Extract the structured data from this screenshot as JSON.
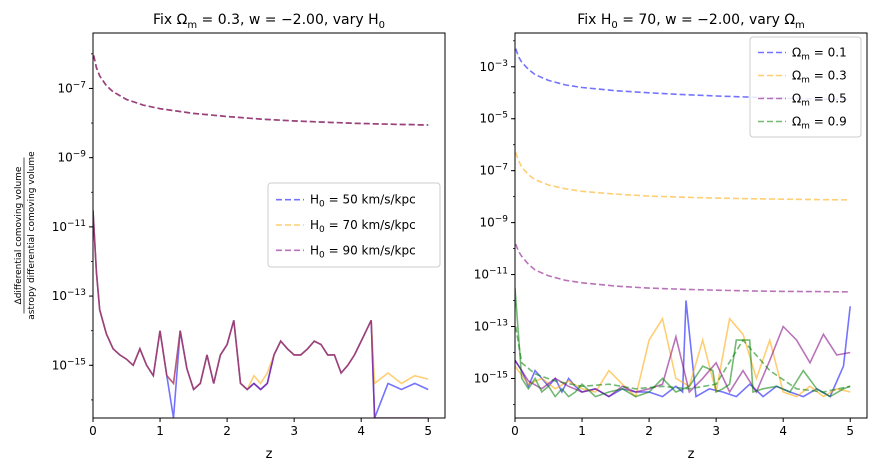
{
  "chart_data": [
    {
      "type": "line",
      "title": "Fix Ω_m = 0.3, w = −2.00, vary H_0",
      "xlabel": "z",
      "ylabel_numerator": "Δdifferential comoving volume",
      "ylabel_denominator": "astropy differential comoving volume",
      "xlim": [
        0,
        5.25
      ],
      "ylim": [
        3e-17,
        4e-06
      ],
      "yscale": "log",
      "x_ticks": [
        "0",
        "1",
        "2",
        "3",
        "4",
        "5"
      ],
      "y_ticks": [
        "10^-7",
        "10^-9",
        "10^-11",
        "10^-13",
        "10^-15"
      ],
      "legend": {
        "location": "center-right"
      },
      "series": [
        {
          "name": "H_0 = 50 km/s/kpc",
          "color": "#0000ff",
          "style": "dashed",
          "x": [
            0.01,
            0.05,
            0.1,
            0.2,
            0.3,
            0.5,
            0.75,
            1.0,
            1.5,
            2.0,
            2.5,
            3.0,
            3.5,
            4.0,
            4.5,
            5.0
          ],
          "y": [
            9e-07,
            4e-07,
            2.3e-07,
            1.2e-07,
            8e-08,
            4.8e-08,
            3.3e-08,
            2.6e-08,
            1.9e-08,
            1.55e-08,
            1.3e-08,
            1.15e-08,
            1.05e-08,
            9.7e-09,
            9.2e-09,
            8.8e-09
          ]
        },
        {
          "name": "H_0 = 70 km/s/kpc",
          "color": "#ffa500",
          "style": "dashed",
          "x": [
            0.01,
            0.05,
            0.1,
            0.2,
            0.3,
            0.5,
            0.75,
            1.0,
            1.5,
            2.0,
            2.5,
            3.0,
            3.5,
            4.0,
            4.5,
            5.0
          ],
          "y": [
            9e-07,
            4e-07,
            2.3e-07,
            1.2e-07,
            8e-08,
            4.8e-08,
            3.3e-08,
            2.6e-08,
            1.9e-08,
            1.55e-08,
            1.3e-08,
            1.15e-08,
            1.05e-08,
            9.7e-09,
            9.2e-09,
            8.8e-09
          ]
        },
        {
          "name": "H_0 = 90 km/s/kpc",
          "color": "#800080",
          "style": "dashed",
          "x": [
            0.01,
            0.05,
            0.1,
            0.2,
            0.3,
            0.5,
            0.75,
            1.0,
            1.5,
            2.0,
            2.5,
            3.0,
            3.5,
            4.0,
            4.5,
            5.0
          ],
          "y": [
            9e-07,
            4e-07,
            2.3e-07,
            1.2e-07,
            8e-08,
            4.8e-08,
            3.3e-08,
            2.6e-08,
            1.9e-08,
            1.55e-08,
            1.3e-08,
            1.15e-08,
            1.05e-08,
            9.7e-09,
            9.2e-09,
            8.8e-09
          ]
        },
        {
          "name": "",
          "color": "#0000ff",
          "style": "solid",
          "x": [
            0.0,
            0.05,
            0.1,
            0.2,
            0.3,
            0.4,
            0.5,
            0.6,
            0.7,
            0.8,
            0.9,
            1.0,
            1.1,
            1.2,
            1.3,
            1.4,
            1.5,
            1.6,
            1.7,
            1.8,
            1.9,
            2.0,
            2.1,
            2.2,
            2.3,
            2.4,
            2.5,
            2.6,
            2.7,
            2.8,
            2.9,
            3.0,
            3.1,
            3.2,
            3.3,
            3.4,
            3.5,
            3.6,
            3.7,
            3.8,
            3.9,
            4.0,
            4.15,
            4.2,
            4.4,
            4.6,
            4.8,
            5.0
          ],
          "y": [
            3e-11,
            5e-13,
            4e-14,
            8e-15,
            3e-15,
            2e-15,
            1.5e-15,
            1e-15,
            3e-15,
            1e-15,
            5e-16,
            1e-14,
            5e-16,
            3e-17,
            1e-14,
            8e-16,
            2e-16,
            3e-16,
            2e-15,
            3e-16,
            2e-15,
            4e-15,
            2e-14,
            3e-16,
            2e-16,
            3e-16,
            2e-16,
            3e-16,
            2e-15,
            5e-15,
            3e-15,
            2e-15,
            2e-15,
            3e-15,
            5e-15,
            4e-15,
            2e-15,
            2e-15,
            6e-16,
            1e-15,
            2e-15,
            5e-15,
            2e-14,
            3e-17,
            3e-16,
            2e-16,
            3e-16,
            2e-16
          ]
        },
        {
          "name": "",
          "color": "#ffa500",
          "style": "solid",
          "x": [
            0.0,
            0.05,
            0.1,
            0.2,
            0.3,
            0.4,
            0.5,
            0.6,
            0.7,
            0.8,
            0.9,
            1.0,
            1.1,
            1.2,
            1.3,
            1.4,
            1.5,
            1.6,
            1.7,
            1.8,
            1.9,
            2.0,
            2.1,
            2.2,
            2.3,
            2.4,
            2.5,
            2.6,
            2.7,
            2.8,
            2.9,
            3.0,
            3.1,
            3.2,
            3.3,
            3.4,
            3.5,
            3.6,
            3.7,
            3.8,
            3.9,
            4.0,
            4.15,
            4.2,
            4.4,
            4.6,
            4.8,
            5.0
          ],
          "y": [
            3e-11,
            5e-13,
            4e-14,
            8e-15,
            3e-15,
            2e-15,
            1.5e-15,
            1e-15,
            3e-15,
            1e-15,
            5e-16,
            1e-14,
            5e-16,
            3e-16,
            1e-14,
            8e-16,
            2e-16,
            3e-16,
            2e-15,
            3e-16,
            2e-15,
            4e-15,
            2e-14,
            3e-16,
            2e-16,
            5e-16,
            3e-16,
            6e-16,
            2e-15,
            5e-15,
            3e-15,
            2e-15,
            2e-15,
            3e-15,
            5e-15,
            4e-15,
            2e-15,
            2e-15,
            6e-16,
            1e-15,
            2e-15,
            5e-15,
            2e-14,
            3e-16,
            6e-16,
            3e-16,
            5e-16,
            4e-16
          ]
        },
        {
          "name": "",
          "color": "#800080",
          "style": "solid",
          "x": [
            0.0,
            0.05,
            0.1,
            0.2,
            0.3,
            0.4,
            0.5,
            0.6,
            0.7,
            0.8,
            0.9,
            1.0,
            1.1,
            1.2,
            1.3,
            1.4,
            1.5,
            1.6,
            1.7,
            1.8,
            1.9,
            2.0,
            2.1,
            2.2,
            2.3,
            2.4,
            2.5,
            2.6,
            2.7,
            2.8,
            2.9,
            3.0,
            3.1,
            3.2,
            3.3,
            3.4,
            3.5,
            3.6,
            3.7,
            3.8,
            3.9,
            4.0,
            4.15,
            4.2,
            4.4,
            4.6,
            4.8,
            5.0
          ],
          "y": [
            3e-11,
            5e-13,
            4e-14,
            8e-15,
            3e-15,
            2e-15,
            1.5e-15,
            1e-15,
            3e-15,
            1e-15,
            5e-16,
            1e-14,
            5e-16,
            3e-16,
            1e-14,
            8e-16,
            2e-16,
            3e-16,
            2e-15,
            3e-16,
            2e-15,
            4e-15,
            2e-14,
            3e-16,
            2e-16,
            3e-16,
            2e-16,
            3e-16,
            2e-15,
            5e-15,
            3e-15,
            2e-15,
            2e-15,
            3e-15,
            5e-15,
            4e-15,
            2e-15,
            2e-15,
            6e-16,
            1e-15,
            2e-15,
            5e-15,
            2e-14,
            3e-17,
            3e-17,
            3e-17,
            3e-17,
            3e-17
          ]
        }
      ]
    },
    {
      "type": "line",
      "title": "Fix H_0 = 70, w = −2.00, vary Ω_m",
      "xlabel": "z",
      "xlim": [
        0,
        5.25
      ],
      "ylim": [
        3e-17,
        0.02
      ],
      "yscale": "log",
      "x_ticks": [
        "0",
        "1",
        "2",
        "3",
        "4",
        "5"
      ],
      "y_ticks": [
        "10^-3",
        "10^-5",
        "10^-7",
        "10^-9",
        "10^-11",
        "10^-13",
        "10^-15"
      ],
      "legend": {
        "location": "top-right"
      },
      "series": [
        {
          "name": "Ω_m = 0.1",
          "color": "#0000ff",
          "style": "dashed",
          "x": [
            0.01,
            0.05,
            0.1,
            0.2,
            0.3,
            0.5,
            0.75,
            1.0,
            1.5,
            2.0,
            2.5,
            3.0,
            3.5,
            4.0,
            4.5,
            5.0
          ],
          "y": [
            0.005,
            0.0025,
            0.0015,
            0.0008,
            0.0005,
            0.0003,
            0.0002,
            0.00016,
            0.00012,
            0.0001,
            8.5e-05,
            7.5e-05,
            6.8e-05,
            6.2e-05,
            5.8e-05,
            5.5e-05
          ]
        },
        {
          "name": "Ω_m = 0.3",
          "color": "#ffa500",
          "style": "dashed",
          "x": [
            0.01,
            0.05,
            0.1,
            0.2,
            0.3,
            0.5,
            0.75,
            1.0,
            1.5,
            2.0,
            2.5,
            3.0,
            3.5,
            4.0,
            4.5,
            5.0
          ],
          "y": [
            5e-07,
            2.5e-07,
            1.4e-07,
            7e-08,
            4.5e-08,
            2.8e-08,
            2e-08,
            1.6e-08,
            1.25e-08,
            1.05e-08,
            9.5e-09,
            8.8e-09,
            8.3e-09,
            8e-09,
            7.7e-09,
            7.5e-09
          ]
        },
        {
          "name": "Ω_m = 0.5",
          "color": "#800080",
          "style": "dashed",
          "x": [
            0.01,
            0.05,
            0.1,
            0.2,
            0.3,
            0.5,
            0.75,
            1.0,
            1.5,
            2.0,
            2.5,
            3.0,
            3.5,
            4.0,
            4.5,
            5.0
          ],
          "y": [
            1.5e-10,
            8e-11,
            5e-11,
            2.5e-11,
            1.5e-11,
            9e-12,
            6e-12,
            4.8e-12,
            3.6e-12,
            3e-12,
            2.7e-12,
            2.5e-12,
            2.35e-12,
            2.25e-12,
            2.2e-12,
            2.15e-12
          ]
        },
        {
          "name": "Ω_m = 0.9",
          "color": "#008000",
          "style": "dashed",
          "x": [
            0.01,
            0.1,
            0.3,
            0.6,
            1.0,
            1.4,
            1.8,
            2.2,
            2.6,
            3.0,
            3.4,
            3.8,
            4.2,
            4.6,
            5.0
          ],
          "y": [
            1e-13,
            4e-15,
            1.5e-15,
            8e-16,
            5e-16,
            6e-16,
            4e-16,
            5e-16,
            4e-16,
            6e-16,
            3e-14,
            2e-15,
            4e-16,
            3e-16,
            5e-16
          ]
        },
        {
          "name": "",
          "color": "#0000ff",
          "style": "solid",
          "x": [
            0.0,
            0.1,
            0.2,
            0.3,
            0.4,
            0.5,
            0.6,
            0.7,
            0.8,
            0.9,
            1.0,
            1.2,
            1.4,
            1.6,
            1.8,
            2.0,
            2.2,
            2.4,
            2.5,
            2.55,
            2.7,
            2.9,
            3.1,
            3.3,
            3.5,
            3.7,
            3.9,
            4.1,
            4.3,
            4.5,
            4.7,
            4.9,
            5.0
          ],
          "y": [
            5e-15,
            2e-15,
            5e-16,
            2e-15,
            1e-15,
            5e-16,
            1e-15,
            3e-16,
            1e-15,
            5e-16,
            3e-16,
            4e-16,
            2e-16,
            4e-16,
            3e-16,
            3e-16,
            2e-16,
            5e-16,
            3e-16,
            1e-12,
            2e-16,
            4e-16,
            3e-16,
            2e-16,
            6e-16,
            2e-16,
            5e-16,
            3e-16,
            2e-16,
            4e-16,
            2e-16,
            3e-15,
            6e-13
          ]
        },
        {
          "name": "",
          "color": "#ffa500",
          "style": "solid",
          "x": [
            0.0,
            0.2,
            0.4,
            0.6,
            0.8,
            1.0,
            1.2,
            1.4,
            1.6,
            1.8,
            2.0,
            2.2,
            2.4,
            2.6,
            2.8,
            3.0,
            3.2,
            3.4,
            3.6,
            3.8,
            4.0,
            4.2,
            4.4,
            4.6,
            4.8,
            5.0
          ],
          "y": [
            3e-15,
            6e-16,
            1e-15,
            4e-16,
            8e-16,
            4e-16,
            3e-16,
            2e-15,
            6e-16,
            2e-16,
            3e-14,
            2e-13,
            1e-15,
            5e-16,
            3e-14,
            3e-16,
            2e-13,
            5e-14,
            1e-15,
            3e-14,
            3e-16,
            2e-16,
            5e-16,
            2e-16,
            4e-16,
            3e-16
          ]
        },
        {
          "name": "",
          "color": "#800080",
          "style": "solid",
          "x": [
            0.0,
            0.2,
            0.4,
            0.6,
            0.8,
            1.0,
            1.2,
            1.4,
            1.6,
            1.8,
            2.0,
            2.2,
            2.4,
            2.6,
            2.8,
            3.0,
            3.2,
            3.4,
            3.6,
            3.8,
            4.0,
            4.2,
            4.4,
            4.6,
            4.8,
            5.0
          ],
          "y": [
            5e-15,
            8e-16,
            4e-16,
            1e-15,
            5e-16,
            3e-16,
            4e-16,
            2e-16,
            5e-16,
            3e-16,
            4e-16,
            6e-16,
            4e-14,
            3e-16,
            1e-15,
            4e-15,
            3e-16,
            2e-15,
            3e-16,
            5e-15,
            1e-13,
            3e-14,
            4e-15,
            5e-14,
            8e-15,
            1e-14
          ]
        },
        {
          "name": "",
          "color": "#008000",
          "style": "solid",
          "x": [
            0.0,
            0.1,
            0.2,
            0.3,
            0.4,
            0.5,
            0.6,
            0.7,
            0.8,
            0.9,
            1.0,
            1.2,
            1.4,
            1.6,
            1.8,
            2.0,
            2.2,
            2.4,
            2.6,
            2.8,
            2.95,
            3.0,
            3.1,
            3.2,
            3.3,
            3.5,
            3.55,
            3.7,
            3.9,
            4.1,
            4.3,
            4.5,
            4.7,
            4.9,
            5.0
          ],
          "y": [
            3e-12,
            1e-15,
            4e-16,
            1e-15,
            3e-16,
            5e-16,
            2e-16,
            4e-16,
            2e-16,
            3e-16,
            6e-16,
            2e-16,
            3e-16,
            4e-16,
            2e-16,
            3e-16,
            1e-15,
            3e-16,
            5e-16,
            3e-15,
            2e-15,
            3e-16,
            4e-16,
            6e-16,
            3e-14,
            3e-14,
            3e-16,
            4e-16,
            5e-16,
            3e-16,
            2e-15,
            4e-16,
            2e-16,
            4e-16,
            5e-16
          ]
        }
      ]
    }
  ]
}
